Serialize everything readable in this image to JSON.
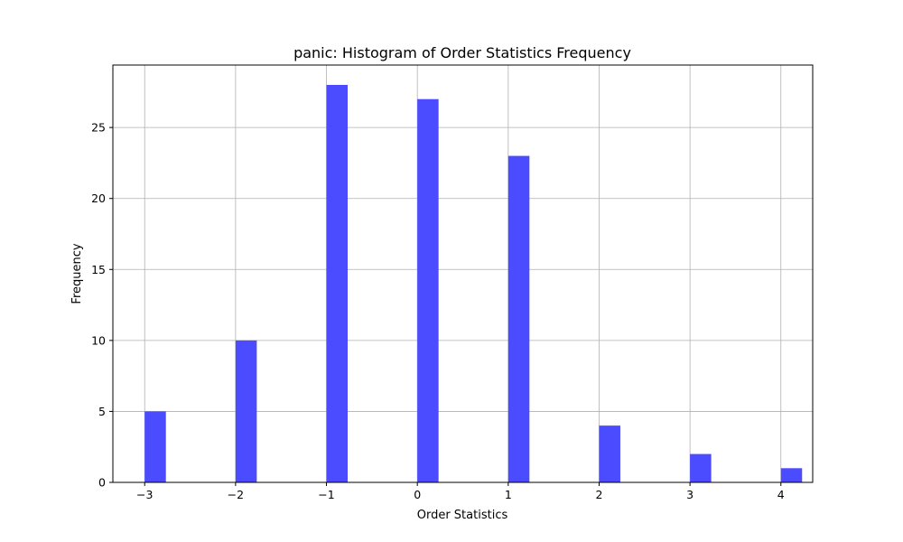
{
  "chart_data": {
    "type": "bar",
    "title": "panic: Histogram of Order Statistics Frequency",
    "xlabel": "Order Statistics",
    "ylabel": "Frequency",
    "x_ticks": [
      -3,
      -2,
      -1,
      0,
      1,
      2,
      3,
      4
    ],
    "x_tick_labels": [
      "−3",
      "−2",
      "−1",
      "0",
      "1",
      "2",
      "3",
      "4"
    ],
    "y_ticks": [
      0,
      5,
      10,
      15,
      20,
      25
    ],
    "y_tick_labels": [
      "0",
      "5",
      "10",
      "15",
      "20",
      "25"
    ],
    "xlim": [
      -3.35,
      4.35
    ],
    "ylim": [
      0,
      29.4
    ],
    "bin_width": 0.2333,
    "bins": [
      {
        "x": -3,
        "count": 5
      },
      {
        "x": -2,
        "count": 10
      },
      {
        "x": -1,
        "count": 28
      },
      {
        "x": 0,
        "count": 27
      },
      {
        "x": 1,
        "count": 23
      },
      {
        "x": 2,
        "count": 4
      },
      {
        "x": 3,
        "count": 2
      },
      {
        "x": 4,
        "count": 1
      }
    ],
    "grid": true,
    "bar_color": "#4b4bff",
    "grid_color": "#b0b0b0"
  }
}
